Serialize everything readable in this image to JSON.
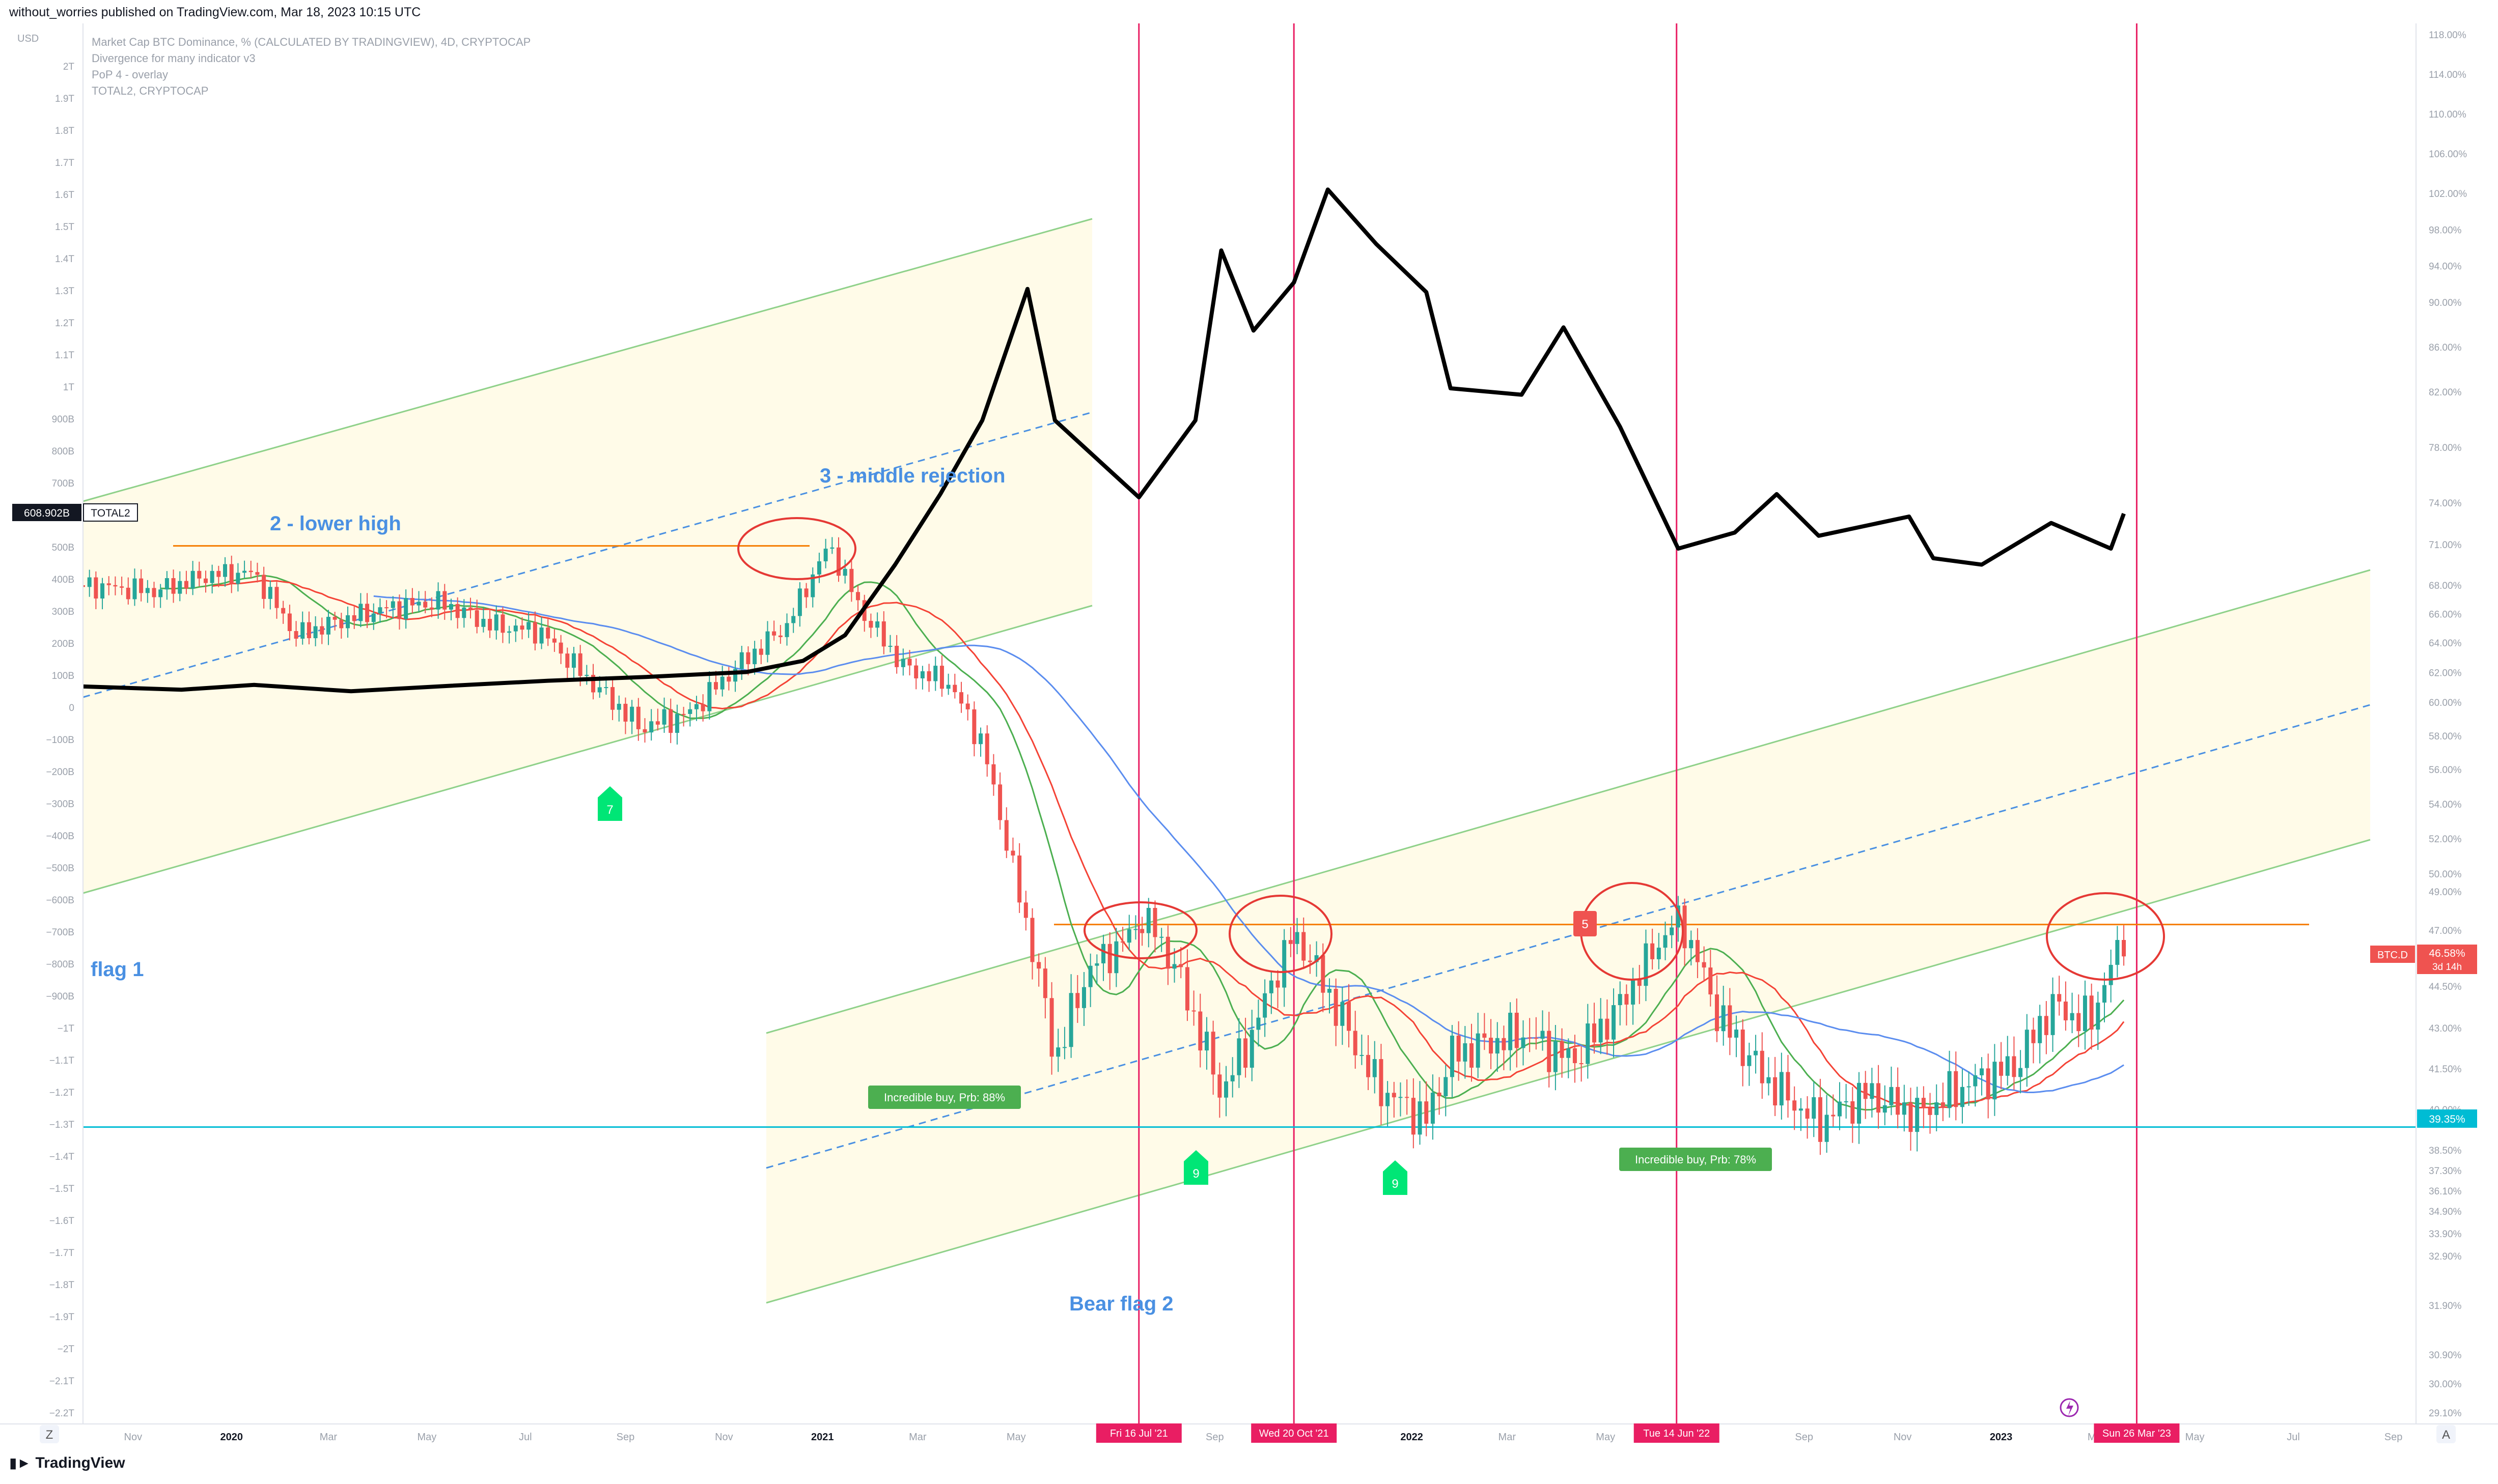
{
  "header": {
    "published_text": "without_worries published on TradingView.com, Mar 18, 2023 10:15 UTC"
  },
  "footer": {
    "brand": "TradingView"
  },
  "legend": {
    "line1": "Market Cap BTC Dominance, % (CALCULATED BY TRADINGVIEW), 4D, CRYPTOCAP",
    "line2": "Divergence for many indicator v3",
    "line3": "PoP 4 - overlay",
    "line4": "TOTAL2, CRYPTOCAP"
  },
  "colors": {
    "channel_fill": "#fffbe6",
    "channel_line": "#8fd18a",
    "bull": "#26a69a",
    "bear": "#ef5350",
    "vline": "#e91e63",
    "orange": "#f57c00",
    "cyan": "#00bcd4",
    "text_blue": "#4a90e2",
    "ema_red": "#f44336",
    "sma_blue": "#5b8def",
    "ema_green": "#4caf50",
    "total2": "#000000"
  },
  "chart_data": {
    "type": "candlestick",
    "title": "Market Cap BTC Dominance, % (CALCULATED BY TRADINGVIEW), 4D, CRYPTOCAP",
    "left_axis": {
      "unit": "USD",
      "ticks": [
        "2T",
        "1.9T",
        "1.8T",
        "1.7T",
        "1.6T",
        "1.5T",
        "1.4T",
        "1.3T",
        "1.2T",
        "1.1T",
        "1T",
        "900B",
        "800B",
        "700B",
        "600B",
        "500B",
        "400B",
        "300B",
        "200B",
        "100B",
        "0",
        "−100B",
        "−200B",
        "−300B",
        "−400B",
        "−500B",
        "−600B",
        "−700B",
        "−800B",
        "−900B",
        "−1T",
        "−1.1T",
        "−1.2T",
        "−1.3T",
        "−1.4T",
        "−1.5T",
        "−1.6T",
        "−1.7T",
        "−1.8T",
        "−1.9T",
        "−2T",
        "−2.1T",
        "−2.2T"
      ]
    },
    "right_axis": {
      "ticks": [
        "118.00%",
        "114.00%",
        "110.00%",
        "106.00%",
        "102.00%",
        "98.00%",
        "94.00%",
        "90.00%",
        "86.00%",
        "82.00%",
        "78.00%",
        "74.00%",
        "71.00%",
        "68.00%",
        "66.00%",
        "64.00%",
        "62.00%",
        "60.00%",
        "58.00%",
        "56.00%",
        "54.00%",
        "52.00%",
        "50.00%",
        "49.00%",
        "47.00%",
        "46.00%",
        "44.50%",
        "43.00%",
        "41.50%",
        "40.00%",
        "38.50%",
        "37.30%",
        "36.10%",
        "34.90%",
        "33.90%",
        "32.90%",
        "31.90%",
        "30.90%",
        "30.00%",
        "29.10%"
      ]
    },
    "x_axis": {
      "ticks": [
        "Nov",
        "2020",
        "Mar",
        "May",
        "Jul",
        "Sep",
        "Nov",
        "2021",
        "Mar",
        "May",
        "Jul",
        "Sep",
        "Nov",
        "2022",
        "Mar",
        "May",
        "Jul",
        "Sep",
        "Nov",
        "2023",
        "Mar",
        "May",
        "Jul",
        "Sep"
      ]
    },
    "price_tags": {
      "total2_value": "608.902B",
      "total2_name": "TOTAL2",
      "btcd_name": "BTC.D",
      "btcd_value": "46.58%",
      "btcd_countdown": "3d 14h",
      "support_value": "39.35%"
    },
    "vertical_markers": [
      {
        "date": "Fri 16 Jul '21"
      },
      {
        "date": "Wed 20 Oct '21"
      },
      {
        "date": "Tue 14 Jun '22"
      },
      {
        "date": "Sun 26 Mar '23"
      }
    ],
    "levels": {
      "support_btcd": 39.35,
      "resistance_btcd": 47.3,
      "resistance_2019_btcd": 70.9
    },
    "annotations": {
      "flag1": "flag 1",
      "lower_high": "2 - lower high",
      "middle_rejection": "3 - middle rejection",
      "bear_flag": "Bear flag 2",
      "buy1": "Incredible buy, Prb: 88%",
      "buy2": "Incredible buy, Prb: 78%",
      "count7": "7",
      "count9a": "9",
      "count9b": "9",
      "count5": "5"
    },
    "btcd_series": {
      "name": "BTC.D",
      "note_units": "percent",
      "points": [
        [
          "2019-10-01",
          68.0
        ],
        [
          "2019-11-15",
          67.6
        ],
        [
          "2019-12-20",
          68.8
        ],
        [
          "2020-01-15",
          68.9
        ],
        [
          "2020-02-10",
          64.5
        ],
        [
          "2020-03-10",
          65.6
        ],
        [
          "2020-04-10",
          66.5
        ],
        [
          "2020-05-10",
          66.8
        ],
        [
          "2020-06-10",
          65.2
        ],
        [
          "2020-07-10",
          64.8
        ],
        [
          "2020-08-10",
          61.4
        ],
        [
          "2020-09-10",
          58.5
        ],
        [
          "2020-10-10",
          59.3
        ],
        [
          "2020-11-10",
          62.5
        ],
        [
          "2020-12-10",
          65.2
        ],
        [
          "2021-01-05",
          71.0
        ],
        [
          "2021-01-25",
          66.2
        ],
        [
          "2021-02-20",
          62.4
        ],
        [
          "2021-03-20",
          61.3
        ],
        [
          "2021-04-10",
          57.5
        ],
        [
          "2021-05-05",
          48.0
        ],
        [
          "2021-05-25",
          41.8
        ],
        [
          "2021-06-15",
          45.2
        ],
        [
          "2021-07-05",
          46.3
        ],
        [
          "2021-07-20",
          47.7
        ],
        [
          "2021-08-10",
          44.9
        ],
        [
          "2021-09-05",
          40.6
        ],
        [
          "2021-09-25",
          42.9
        ],
        [
          "2021-10-20",
          46.8
        ],
        [
          "2021-11-10",
          44.3
        ],
        [
          "2021-12-10",
          40.9
        ],
        [
          "2022-01-10",
          39.6
        ],
        [
          "2022-01-25",
          42.0
        ],
        [
          "2022-03-10",
          42.8
        ],
        [
          "2022-04-10",
          41.8
        ],
        [
          "2022-05-10",
          43.8
        ],
        [
          "2022-06-15",
          47.6
        ],
        [
          "2022-07-10",
          43.4
        ],
        [
          "2022-08-10",
          41.0
        ],
        [
          "2022-09-10",
          39.5
        ],
        [
          "2022-10-10",
          40.6
        ],
        [
          "2022-11-10",
          39.8
        ],
        [
          "2022-12-10",
          40.9
        ],
        [
          "2023-01-10",
          41.6
        ],
        [
          "2023-02-01",
          43.8
        ],
        [
          "2023-02-25",
          43.2
        ],
        [
          "2023-03-18",
          46.58
        ]
      ]
    },
    "total2_series": {
      "name": "TOTAL2",
      "note_units": "USD billions",
      "points": [
        [
          "2019-10-01",
          70
        ],
        [
          "2019-12-01",
          60
        ],
        [
          "2020-01-15",
          75
        ],
        [
          "2020-03-15",
          55
        ],
        [
          "2020-05-15",
          72
        ],
        [
          "2020-07-15",
          88
        ],
        [
          "2020-09-15",
          100
        ],
        [
          "2020-11-15",
          115
        ],
        [
          "2020-12-20",
          150
        ],
        [
          "2021-01-15",
          230
        ],
        [
          "2021-02-15",
          450
        ],
        [
          "2021-03-15",
          670
        ],
        [
          "2021-04-10",
          900
        ],
        [
          "2021-05-08",
          1310
        ],
        [
          "2021-05-25",
          900
        ],
        [
          "2021-06-20",
          780
        ],
        [
          "2021-07-16",
          660
        ],
        [
          "2021-08-20",
          900
        ],
        [
          "2021-09-05",
          1430
        ],
        [
          "2021-09-25",
          1180
        ],
        [
          "2021-10-20",
          1330
        ],
        [
          "2021-11-10",
          1620
        ],
        [
          "2021-12-10",
          1450
        ],
        [
          "2022-01-10",
          1300
        ],
        [
          "2022-01-25",
          1000
        ],
        [
          "2022-03-10",
          980
        ],
        [
          "2022-04-05",
          1190
        ],
        [
          "2022-05-10",
          880
        ],
        [
          "2022-06-15",
          500
        ],
        [
          "2022-07-20",
          550
        ],
        [
          "2022-08-15",
          670
        ],
        [
          "2022-09-10",
          540
        ],
        [
          "2022-11-05",
          600
        ],
        [
          "2022-11-20",
          470
        ],
        [
          "2022-12-20",
          450
        ],
        [
          "2023-02-01",
          580
        ],
        [
          "2023-03-10",
          500
        ],
        [
          "2023-03-18",
          609
        ]
      ]
    }
  }
}
